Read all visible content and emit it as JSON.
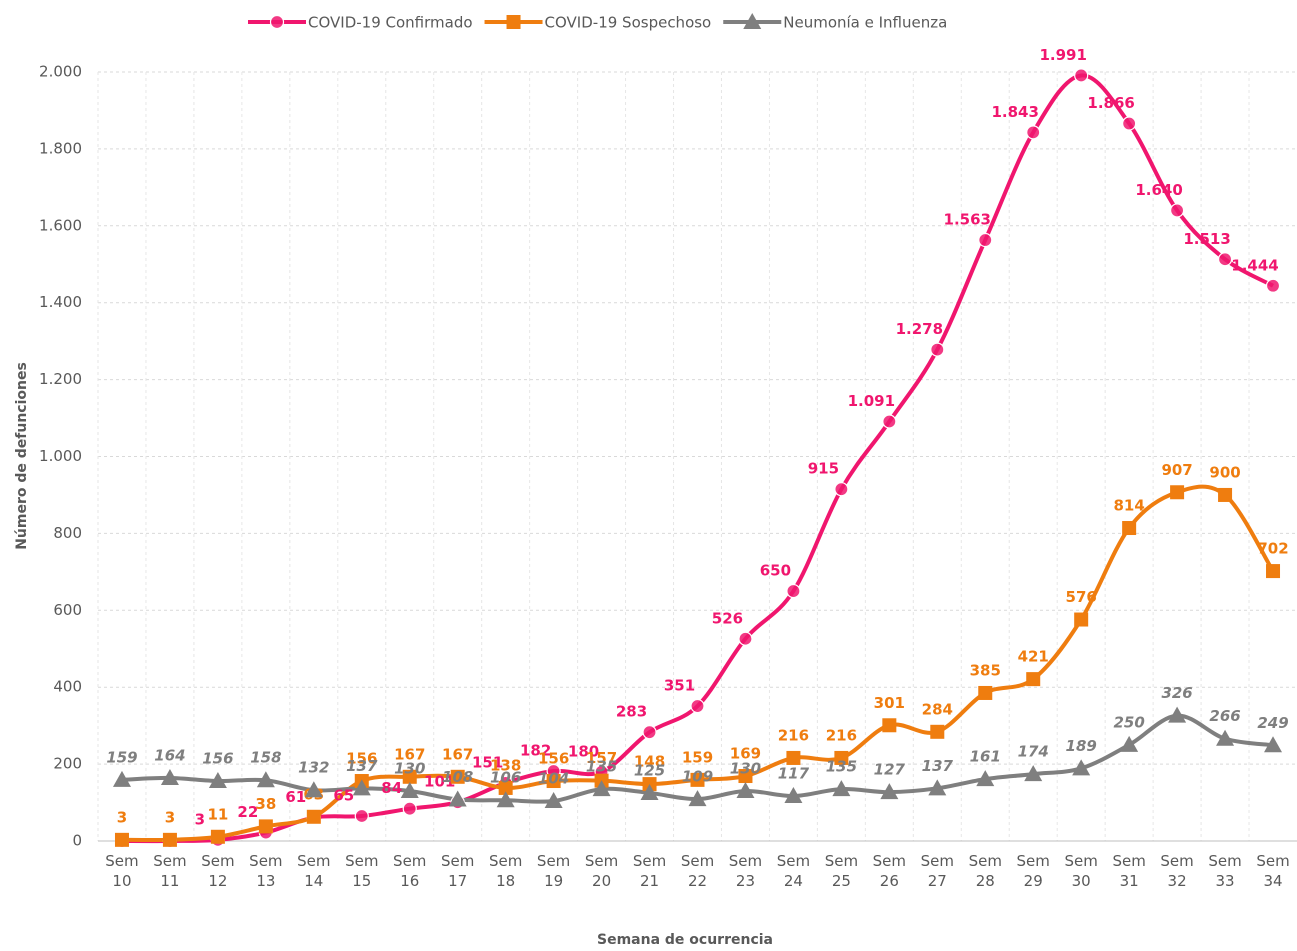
{
  "chart_data": {
    "type": "line",
    "y_label": "Número de defunciones",
    "x_label": "Semana de ocurrencia",
    "categories": [
      "Sem 10",
      "Sem 11",
      "Sem 12",
      "Sem 13",
      "Sem 14",
      "Sem 15",
      "Sem 16",
      "Sem 17",
      "Sem 18",
      "Sem 19",
      "Sem 20",
      "Sem 21",
      "Sem 22",
      "Sem 23",
      "Sem 24",
      "Sem 25",
      "Sem 26",
      "Sem 27",
      "Sem 28",
      "Sem 29",
      "Sem 30",
      "Sem 31",
      "Sem 32",
      "Sem 33",
      "Sem 34"
    ],
    "series": [
      {
        "name": "COVID-19 Confirmado",
        "color": "#f0166e",
        "marker": "circle",
        "values": [
          0,
          0,
          3,
          22,
          61,
          65,
          84,
          101,
          151,
          182,
          180,
          283,
          351,
          526,
          650,
          915,
          1091,
          1278,
          1563,
          1843,
          1991,
          1866,
          1640,
          1513,
          1444
        ],
        "value_labels": [
          null,
          null,
          "3",
          "22",
          "61",
          "65",
          "84",
          "101",
          "151",
          "182",
          "180",
          "283",
          "351",
          "526",
          "650",
          "915",
          "1.091",
          "1.278",
          "1.563",
          "1.843",
          "1.991",
          "1.866",
          "1.640",
          "1.513",
          "1.444"
        ]
      },
      {
        "name": "COVID-19 Sospechoso",
        "color": "#ef7d0f",
        "marker": "square",
        "values": [
          3,
          3,
          11,
          38,
          63,
          156,
          167,
          167,
          138,
          156,
          157,
          148,
          159,
          169,
          216,
          216,
          301,
          284,
          385,
          421,
          576,
          814,
          907,
          900,
          702
        ]
      },
      {
        "name": "Neumonía e Influenza",
        "color": "#7f7f7f",
        "marker": "triangle",
        "values": [
          159,
          164,
          156,
          158,
          132,
          137,
          130,
          108,
          106,
          104,
          135,
          125,
          109,
          130,
          117,
          135,
          127,
          137,
          161,
          174,
          189,
          250,
          326,
          266,
          249
        ]
      }
    ],
    "ylim": [
      0,
      2000
    ],
    "yticks": [
      0,
      200,
      400,
      600,
      800,
      {
        "value": 1000,
        "label": "1.000"
      },
      {
        "value": 1200,
        "label": "1.200"
      },
      {
        "value": 1400,
        "label": "1.400"
      },
      {
        "value": 1600,
        "label": "1.600"
      },
      {
        "value": 1800,
        "label": "1.800"
      },
      {
        "value": 2000,
        "label": "2.000"
      }
    ],
    "grid": true,
    "legend": "top"
  }
}
